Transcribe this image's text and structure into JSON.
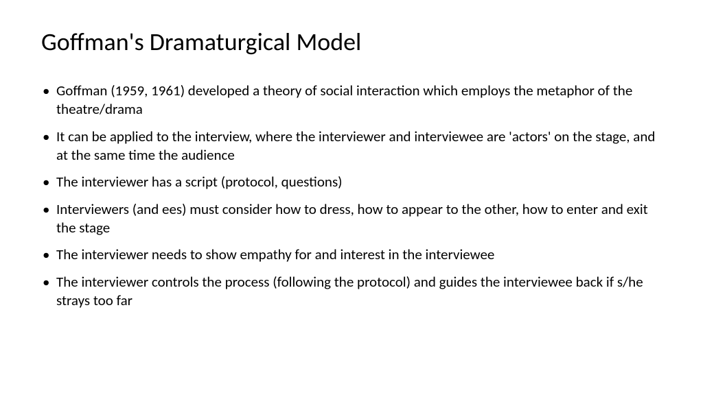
{
  "slide": {
    "title": "Goffman's Dramaturgical Model",
    "title_fontsize": 36,
    "title_color": "#000000",
    "background_color": "#ffffff",
    "bullets": [
      "Goffman (1959, 1961) developed a theory of social interaction which employs the metaphor of the theatre/drama",
      "It can be applied to the interview, where the interviewer and interviewee are 'actors' on the stage, and at the same time the audience",
      "The interviewer has a script (protocol, questions)",
      "Interviewers (and ees) must consider how to dress, how to appear to the other, how to enter and exit the stage",
      "The interviewer needs to show empathy for and interest in the interviewee",
      "The interviewer controls the process (following the protocol) and guides the interviewee back if s/he strays too far"
    ],
    "bullet_fontsize": 21,
    "bullet_color": "#000000",
    "bullet_marker": "•",
    "font_family": "Calibri"
  }
}
